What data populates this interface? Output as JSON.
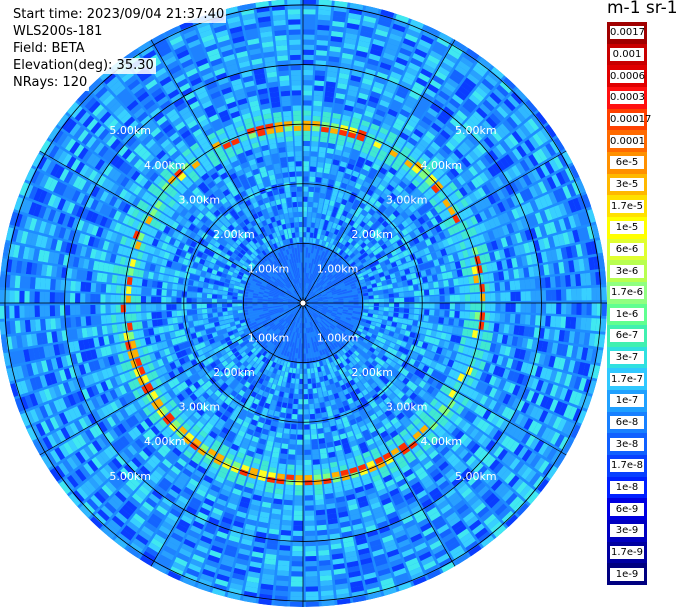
{
  "info": {
    "start_time": "Start time: 2023/09/04 21:37:40",
    "instrument": "WLS200s-181",
    "field": "Field: BETA",
    "elevation": "Elevation(deg): 35.30",
    "nrays": "NRays: 120"
  },
  "colorbar": {
    "units": "m-1 sr-1",
    "labels": [
      "0.0017",
      "0.001",
      "0.0006",
      "0.0003",
      "0.00017",
      "0.0001",
      "6e-5",
      "3e-5",
      "1.7e-5",
      "1e-5",
      "6e-6",
      "3e-6",
      "1.7e-6",
      "1e-6",
      "6e-7",
      "3e-7",
      "1.7e-7",
      "1e-7",
      "6e-8",
      "3e-8",
      "1.7e-8",
      "1e-8",
      "6e-9",
      "3e-9",
      "1.7e-9",
      "1e-9"
    ],
    "colors": [
      "#a00000",
      "#c80000",
      "#e00000",
      "#ff1010",
      "#ff4000",
      "#ff6a00",
      "#ff9000",
      "#ffb800",
      "#ffe000",
      "#ffff00",
      "#e0ff30",
      "#b8ff50",
      "#90ff80",
      "#60ff90",
      "#40f0b0",
      "#30e0e0",
      "#30c8ff",
      "#20a0ff",
      "#1880ff",
      "#1060ff",
      "#0840ff",
      "#0020ff",
      "#0000e0",
      "#0000c0",
      "#0000a0",
      "#000080"
    ]
  },
  "range_labels": [
    "1.00km",
    "2.00km",
    "3.00km",
    "4.00km",
    "5.00km"
  ],
  "range_ring_km": [
    1,
    2,
    3,
    4,
    5
  ],
  "max_range_km": 5.1,
  "spoke_step_deg": 30,
  "nrays": 120,
  "aerosol_ring_km": 3.0
}
